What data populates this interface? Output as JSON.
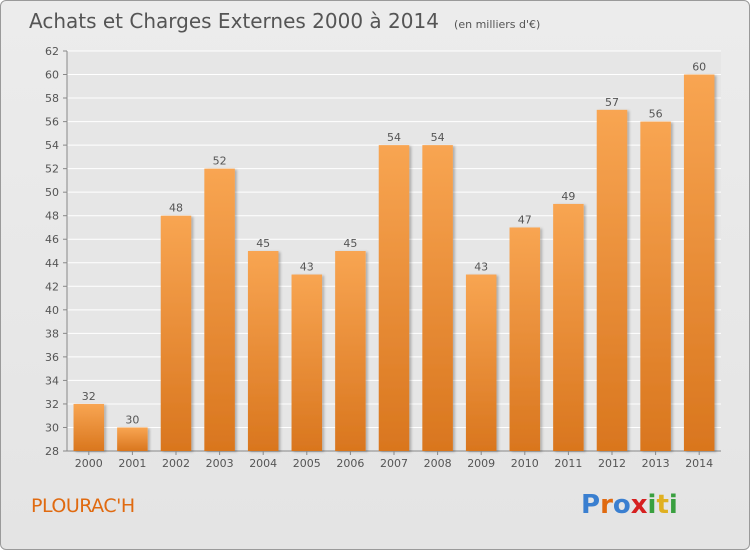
{
  "header": {
    "title": "Achats et Charges Externes 2000 à 2014",
    "subtitle": "(en milliers d'€)"
  },
  "commune": "PLOURAC'H",
  "logo": {
    "text": "Proxiti",
    "letter_colors": [
      "#3a7fd0",
      "#e06a10",
      "#3a7fd0",
      "#d62020",
      "#3aa040",
      "#e0b020",
      "#3aa040"
    ]
  },
  "colors": {
    "bar_top": "#f8a552",
    "bar_bottom": "#d9761e",
    "text": "#555555",
    "grid": "#ffffff",
    "commune": "#e06a10"
  },
  "chart_data": {
    "type": "bar",
    "title": "Achats et Charges Externes 2000 à 2014",
    "subtitle": "(en milliers d'€)",
    "categories": [
      "2000",
      "2001",
      "2002",
      "2003",
      "2004",
      "2005",
      "2006",
      "2007",
      "2008",
      "2009",
      "2010",
      "2011",
      "2012",
      "2013",
      "2014"
    ],
    "values": [
      32,
      30,
      48,
      52,
      45,
      43,
      45,
      54,
      54,
      43,
      47,
      49,
      57,
      56,
      60
    ],
    "ylim": [
      28,
      62
    ],
    "yticks": [
      28,
      30,
      32,
      34,
      36,
      38,
      40,
      42,
      44,
      46,
      48,
      50,
      52,
      54,
      56,
      58,
      60,
      62
    ],
    "grid": true,
    "data_labels": true
  }
}
